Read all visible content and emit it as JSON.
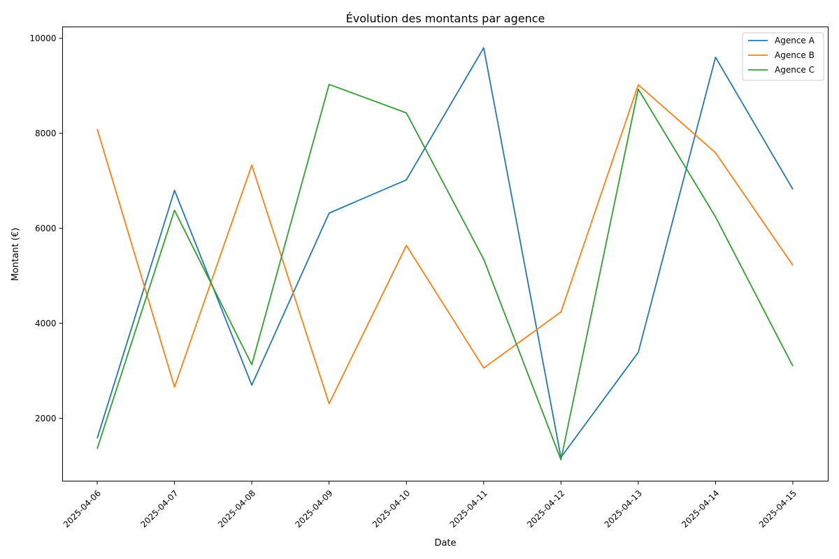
{
  "chart_data": {
    "type": "line",
    "title": "Évolution des montants par agence",
    "xlabel": "Date",
    "ylabel": "Montant (€)",
    "x": [
      "2025-04-06",
      "2025-04-07",
      "2025-04-08",
      "2025-04-09",
      "2025-04-10",
      "2025-04-11",
      "2025-04-12",
      "2025-04-13",
      "2025-04-14",
      "2025-04-15"
    ],
    "yticks": [
      2000,
      4000,
      6000,
      8000,
      10000
    ],
    "ylim": [
      680,
      10240
    ],
    "grid": false,
    "legend_position": "top-right",
    "series": [
      {
        "name": "Agence A",
        "color": "#1f77b4",
        "values": [
          1580,
          6800,
          2700,
          6320,
          7020,
          9800,
          1180,
          3390,
          9600,
          6820
        ]
      },
      {
        "name": "Agence B",
        "color": "#ff7f0e",
        "values": [
          8090,
          2660,
          7330,
          2310,
          5640,
          3060,
          4240,
          9020,
          7590,
          5220
        ]
      },
      {
        "name": "Agence C",
        "color": "#2ca02c",
        "values": [
          1360,
          6380,
          3130,
          9030,
          8430,
          5350,
          1130,
          8930,
          6240,
          3100
        ]
      }
    ]
  }
}
